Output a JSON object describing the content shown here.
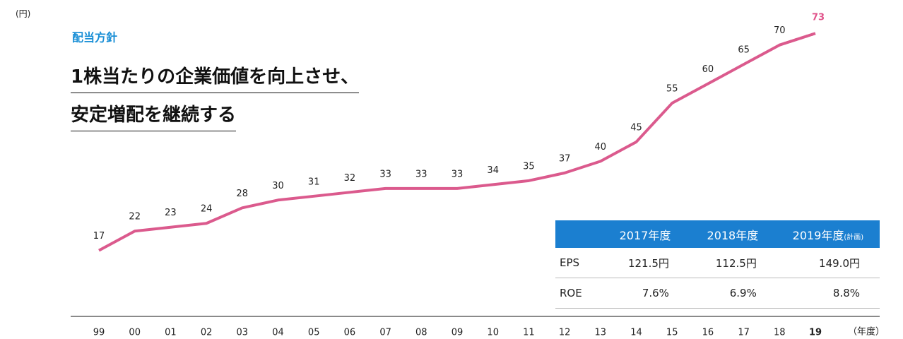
{
  "chart_data": {
    "type": "line",
    "y_unit": "(円)",
    "x_unit": "（年度）",
    "kicker": "配当方針",
    "headline": [
      "1株当たりの企業価値を向上させ、",
      "安定増配を継続する"
    ],
    "categories": [
      "99",
      "00",
      "01",
      "02",
      "03",
      "04",
      "05",
      "06",
      "07",
      "08",
      "09",
      "10",
      "11",
      "12",
      "13",
      "14",
      "15",
      "16",
      "17",
      "18",
      "19"
    ],
    "values": [
      17,
      22,
      23,
      24,
      28,
      30,
      31,
      32,
      33,
      33,
      33,
      34,
      35,
      37,
      40,
      45,
      55,
      60,
      65,
      70,
      73
    ],
    "color": "#db5a8d",
    "highlight_color": "#e0528a",
    "dashed_last_segment": true,
    "ylim": [
      0,
      80
    ],
    "table": {
      "header": [
        "",
        {
          "text": "2019年度",
          "note": "(計画)"
        }
      ],
      "columns": [
        "2017年度",
        "2018年度"
      ],
      "rows": [
        [
          "EPS",
          "121.5円",
          "112.5円",
          "149.0円"
        ],
        [
          "ROE",
          "7.6%",
          "6.9%",
          "8.8%"
        ]
      ]
    }
  }
}
